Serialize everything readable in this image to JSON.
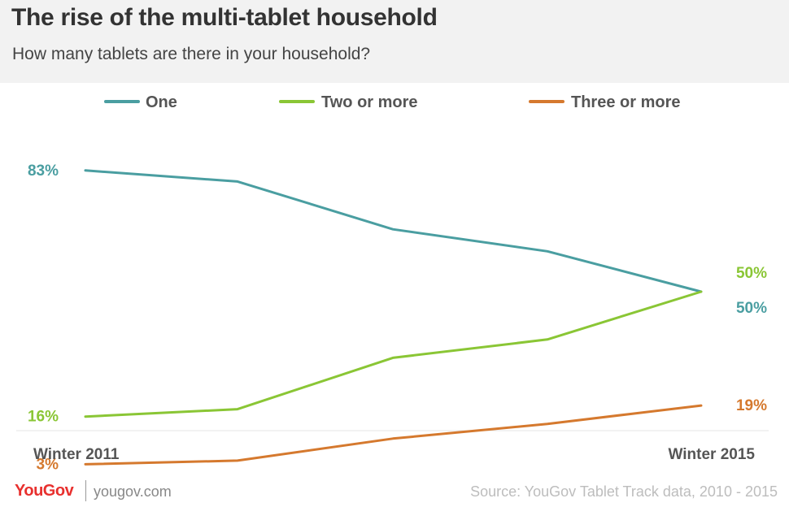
{
  "header": {
    "title": "The rise of the multi-tablet household",
    "subtitle": "How many tablets are there in your household?"
  },
  "chart_data": {
    "type": "line",
    "x": [
      "Winter 2011",
      "",
      "",
      "",
      "Winter 2015"
    ],
    "x_tick_labels": [
      "Winter 2011",
      "Winter 2015"
    ],
    "ylim": [
      0,
      100
    ],
    "grid": false,
    "legend_position": "top",
    "series": [
      {
        "name": "One",
        "color": "#4a9ea1",
        "values": [
          83,
          80,
          67,
          61,
          50
        ],
        "start_label": "83%",
        "end_label": "50%"
      },
      {
        "name": "Two or more",
        "color": "#8ac635",
        "values": [
          16,
          18,
          32,
          37,
          50
        ],
        "start_label": "16%",
        "end_label": "50%"
      },
      {
        "name": "Three or more",
        "color": "#d5792e",
        "values": [
          3,
          4,
          10,
          14,
          19
        ],
        "start_label": "3%",
        "end_label": "19%"
      }
    ]
  },
  "footer": {
    "logo": "YouGov",
    "url": "yougov.com",
    "source": "Source: YouGov Tablet Track data, 2010 - 2015"
  }
}
